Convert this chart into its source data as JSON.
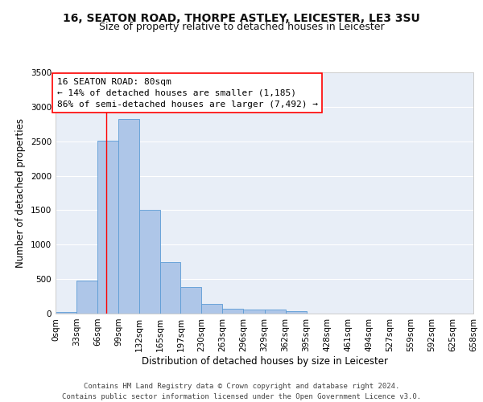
{
  "title_line1": "16, SEATON ROAD, THORPE ASTLEY, LEICESTER, LE3 3SU",
  "title_line2": "Size of property relative to detached houses in Leicester",
  "xlabel": "Distribution of detached houses by size in Leicester",
  "ylabel": "Number of detached properties",
  "footer_line1": "Contains HM Land Registry data © Crown copyright and database right 2024.",
  "footer_line2": "Contains public sector information licensed under the Open Government Licence v3.0.",
  "bin_edges": [
    0,
    33,
    66,
    99,
    132,
    165,
    197,
    230,
    263,
    296,
    329,
    362,
    395,
    428,
    461,
    494,
    527,
    559,
    592,
    625,
    658
  ],
  "bin_labels": [
    "0sqm",
    "33sqm",
    "66sqm",
    "99sqm",
    "132sqm",
    "165sqm",
    "197sqm",
    "230sqm",
    "263sqm",
    "296sqm",
    "329sqm",
    "362sqm",
    "395sqm",
    "428sqm",
    "461sqm",
    "494sqm",
    "527sqm",
    "559sqm",
    "592sqm",
    "625sqm",
    "658sqm"
  ],
  "bar_heights": [
    25,
    480,
    2510,
    2820,
    1510,
    750,
    390,
    140,
    70,
    55,
    55,
    30,
    0,
    0,
    0,
    0,
    0,
    0,
    0,
    0
  ],
  "bar_color": "#aec6e8",
  "bar_edge_color": "#5b9bd5",
  "red_line_x": 80,
  "annotation_title": "16 SEATON ROAD: 80sqm",
  "annotation_line2": "← 14% of detached houses are smaller (1,185)",
  "annotation_line3": "86% of semi-detached houses are larger (7,492) →",
  "ylim": [
    0,
    3500
  ],
  "yticks": [
    0,
    500,
    1000,
    1500,
    2000,
    2500,
    3000,
    3500
  ],
  "background_color": "#e8eef7",
  "grid_color": "#ffffff",
  "title_fontsize": 10,
  "subtitle_fontsize": 9,
  "axis_label_fontsize": 8.5,
  "tick_fontsize": 7.5,
  "annotation_fontsize": 8,
  "footer_fontsize": 6.5
}
